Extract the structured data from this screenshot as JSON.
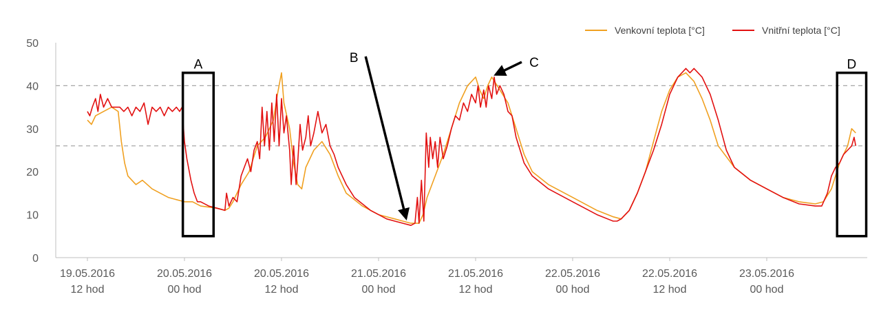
{
  "chart_data": {
    "type": "line",
    "title": "",
    "xlabel": "",
    "ylabel": "",
    "ylim": [
      0,
      50
    ],
    "yticks": [
      0,
      10,
      20,
      30,
      40,
      50
    ],
    "xlim": [
      0,
      108
    ],
    "x_unit": "hours since 19.05.2016 12 hod",
    "xtick_labels": [
      {
        "x": 0,
        "line1": "19.05.2016",
        "line2": "12 hod"
      },
      {
        "x": 12,
        "line1": "20.05.2016",
        "line2": "00 hod"
      },
      {
        "x": 24,
        "line1": "20.05.2016",
        "line2": "12 hod"
      },
      {
        "x": 36,
        "line1": "21.05.2016",
        "line2": "00 hod"
      },
      {
        "x": 48,
        "line1": "21.05.2016",
        "line2": "12 hod"
      },
      {
        "x": 60,
        "line1": "22.05.2016",
        "line2": "00 hod"
      },
      {
        "x": 72,
        "line1": "22.05.2016",
        "line2": "12 hod"
      },
      {
        "x": 84,
        "line1": "23.05.2016",
        "line2": "00 hod"
      }
    ],
    "reference_lines": [
      40,
      26
    ],
    "legend_position": "top-right",
    "series": [
      {
        "name": "Venkovní teplota [°C]",
        "color": "#F0A020",
        "points": [
          [
            0,
            32
          ],
          [
            0.5,
            31
          ],
          [
            1,
            33
          ],
          [
            2,
            34
          ],
          [
            3,
            35
          ],
          [
            3.8,
            34
          ],
          [
            4.2,
            27
          ],
          [
            4.6,
            22
          ],
          [
            5,
            19
          ],
          [
            6,
            17
          ],
          [
            6.8,
            18
          ],
          [
            8,
            16
          ],
          [
            9,
            15
          ],
          [
            10,
            14
          ],
          [
            11,
            13.5
          ],
          [
            12,
            13
          ],
          [
            13,
            13
          ],
          [
            14,
            12
          ],
          [
            16,
            11.5
          ],
          [
            17,
            11
          ],
          [
            17.5,
            11.5
          ],
          [
            18,
            13
          ],
          [
            19,
            17
          ],
          [
            20,
            20
          ],
          [
            20.5,
            23
          ],
          [
            21,
            26
          ],
          [
            22,
            28
          ],
          [
            23,
            32
          ],
          [
            23.5,
            38
          ],
          [
            24,
            43
          ],
          [
            24.3,
            36
          ],
          [
            25,
            30
          ],
          [
            25.5,
            22
          ],
          [
            26,
            17
          ],
          [
            26.5,
            16
          ],
          [
            27,
            21
          ],
          [
            28,
            25
          ],
          [
            29,
            27
          ],
          [
            30,
            24
          ],
          [
            31,
            19
          ],
          [
            32,
            15
          ],
          [
            34,
            12
          ],
          [
            36,
            10
          ],
          [
            38,
            9
          ],
          [
            39,
            8.5
          ],
          [
            40,
            8
          ],
          [
            40.5,
            8
          ],
          [
            41,
            8
          ],
          [
            41.5,
            10
          ],
          [
            42,
            14
          ],
          [
            43,
            19
          ],
          [
            44,
            24
          ],
          [
            45,
            30
          ],
          [
            46,
            36
          ],
          [
            47,
            40
          ],
          [
            48,
            42
          ],
          [
            48.5,
            39
          ],
          [
            49,
            37
          ],
          [
            49.5,
            40
          ],
          [
            50,
            42
          ],
          [
            51,
            39
          ],
          [
            52,
            36
          ],
          [
            53,
            30
          ],
          [
            54,
            24
          ],
          [
            55,
            20
          ],
          [
            57,
            17
          ],
          [
            60,
            14
          ],
          [
            63,
            11
          ],
          [
            65,
            9.5
          ],
          [
            66,
            9
          ],
          [
            67,
            11
          ],
          [
            68,
            15
          ],
          [
            69,
            20
          ],
          [
            70,
            27
          ],
          [
            71,
            34
          ],
          [
            72,
            39
          ],
          [
            73,
            42
          ],
          [
            74,
            43
          ],
          [
            75,
            41
          ],
          [
            76,
            37
          ],
          [
            77,
            32
          ],
          [
            78,
            26
          ],
          [
            80,
            21
          ],
          [
            82,
            18
          ],
          [
            84,
            16
          ],
          [
            86,
            14
          ],
          [
            88,
            13
          ],
          [
            90,
            12.5
          ],
          [
            91,
            13
          ],
          [
            92,
            16
          ],
          [
            93,
            22
          ],
          [
            94,
            26
          ],
          [
            94.5,
            30
          ],
          [
            95,
            29
          ]
        ]
      },
      {
        "name": "Vnitřní teplota [°C]",
        "color": "#E21010",
        "points": [
          [
            0,
            34
          ],
          [
            0.3,
            33
          ],
          [
            0.6,
            35
          ],
          [
            1,
            37
          ],
          [
            1.3,
            34
          ],
          [
            1.6,
            38
          ],
          [
            2,
            35
          ],
          [
            2.5,
            37
          ],
          [
            3,
            35
          ],
          [
            4,
            35
          ],
          [
            4.5,
            34
          ],
          [
            5,
            35
          ],
          [
            5.5,
            33
          ],
          [
            6,
            35
          ],
          [
            6.5,
            34
          ],
          [
            7,
            36
          ],
          [
            7.5,
            31
          ],
          [
            8,
            35
          ],
          [
            8.5,
            34
          ],
          [
            9,
            35
          ],
          [
            9.5,
            33
          ],
          [
            10,
            35
          ],
          [
            10.5,
            34
          ],
          [
            11,
            35
          ],
          [
            11.4,
            34
          ],
          [
            11.7,
            35
          ],
          [
            12,
            27
          ],
          [
            12.3,
            23
          ],
          [
            12.8,
            18
          ],
          [
            13.2,
            15
          ],
          [
            13.6,
            13
          ],
          [
            14,
            13
          ],
          [
            15,
            12
          ],
          [
            16,
            11.5
          ],
          [
            17,
            11
          ],
          [
            17.2,
            15
          ],
          [
            17.5,
            12
          ],
          [
            18,
            14
          ],
          [
            18.5,
            13
          ],
          [
            19,
            19
          ],
          [
            19.4,
            21
          ],
          [
            19.8,
            23
          ],
          [
            20.2,
            20
          ],
          [
            20.6,
            25
          ],
          [
            21,
            27
          ],
          [
            21.3,
            23
          ],
          [
            21.6,
            35
          ],
          [
            21.9,
            26
          ],
          [
            22.2,
            34
          ],
          [
            22.5,
            25
          ],
          [
            22.8,
            36
          ],
          [
            23.1,
            27
          ],
          [
            23.4,
            38
          ],
          [
            23.7,
            26
          ],
          [
            24,
            37
          ],
          [
            24.3,
            29
          ],
          [
            24.6,
            33
          ],
          [
            25,
            25
          ],
          [
            25.2,
            17
          ],
          [
            25.5,
            26
          ],
          [
            25.8,
            17
          ],
          [
            26,
            22
          ],
          [
            26.3,
            31
          ],
          [
            26.6,
            25
          ],
          [
            27,
            28
          ],
          [
            27.3,
            33
          ],
          [
            27.6,
            26
          ],
          [
            28,
            29
          ],
          [
            28.5,
            34
          ],
          [
            29,
            29
          ],
          [
            29.5,
            31
          ],
          [
            30,
            26
          ],
          [
            30.5,
            24
          ],
          [
            31,
            21
          ],
          [
            32,
            17
          ],
          [
            33,
            14
          ],
          [
            35,
            11
          ],
          [
            36,
            10
          ],
          [
            37,
            9
          ],
          [
            38,
            8.5
          ],
          [
            39,
            8
          ],
          [
            40,
            7.5
          ],
          [
            40.5,
            8
          ],
          [
            40.8,
            14
          ],
          [
            41,
            8
          ],
          [
            41.3,
            18
          ],
          [
            41.6,
            8.5
          ],
          [
            41.9,
            29
          ],
          [
            42.2,
            21
          ],
          [
            42.4,
            28
          ],
          [
            42.7,
            23
          ],
          [
            43,
            27
          ],
          [
            43.3,
            21
          ],
          [
            43.6,
            28
          ],
          [
            44,
            23
          ],
          [
            44.5,
            26
          ],
          [
            45,
            30
          ],
          [
            45.5,
            33
          ],
          [
            46,
            32
          ],
          [
            46.5,
            36
          ],
          [
            47,
            34
          ],
          [
            47.5,
            38
          ],
          [
            48,
            36
          ],
          [
            48.3,
            40
          ],
          [
            48.6,
            35
          ],
          [
            49,
            39
          ],
          [
            49.3,
            35
          ],
          [
            49.6,
            40
          ],
          [
            50,
            37
          ],
          [
            50.3,
            42
          ],
          [
            50.6,
            38
          ],
          [
            51,
            40
          ],
          [
            51.5,
            38
          ],
          [
            52,
            34
          ],
          [
            52.5,
            33
          ],
          [
            53,
            28
          ],
          [
            54,
            22
          ],
          [
            55,
            19
          ],
          [
            57,
            16
          ],
          [
            60,
            13
          ],
          [
            63,
            10
          ],
          [
            65,
            8.5
          ],
          [
            65.5,
            8.5
          ],
          [
            66,
            9
          ],
          [
            67,
            11
          ],
          [
            68,
            15
          ],
          [
            69,
            20
          ],
          [
            70,
            25
          ],
          [
            71,
            31
          ],
          [
            72,
            38
          ],
          [
            73,
            42
          ],
          [
            74,
            44
          ],
          [
            74.5,
            43
          ],
          [
            75,
            44
          ],
          [
            76,
            42
          ],
          [
            77,
            38
          ],
          [
            78,
            32
          ],
          [
            79,
            25
          ],
          [
            80,
            21
          ],
          [
            82,
            18
          ],
          [
            84,
            16
          ],
          [
            86,
            14
          ],
          [
            88,
            12.5
          ],
          [
            90,
            12
          ],
          [
            90.8,
            12
          ],
          [
            91.5,
            15
          ],
          [
            92,
            19
          ],
          [
            92.5,
            21
          ],
          [
            93,
            22
          ],
          [
            93.5,
            24
          ],
          [
            94,
            25
          ],
          [
            94.5,
            26
          ],
          [
            94.8,
            28
          ],
          [
            95,
            26
          ]
        ]
      }
    ],
    "annotations": [
      {
        "label": "A",
        "type": "box",
        "x": [
          11.8,
          15.6
        ],
        "y": [
          5,
          43
        ]
      },
      {
        "label": "B",
        "type": "arrow",
        "from": [
          34.4,
          46.8
        ],
        "to": [
          39.4,
          9.2
        ]
      },
      {
        "label": "C",
        "type": "arrow",
        "from": [
          53.7,
          45.5
        ],
        "to": [
          50.5,
          42.6
        ]
      },
      {
        "label": "D",
        "type": "box",
        "x": [
          92.7,
          96.3
        ],
        "y": [
          5,
          43
        ]
      }
    ]
  }
}
